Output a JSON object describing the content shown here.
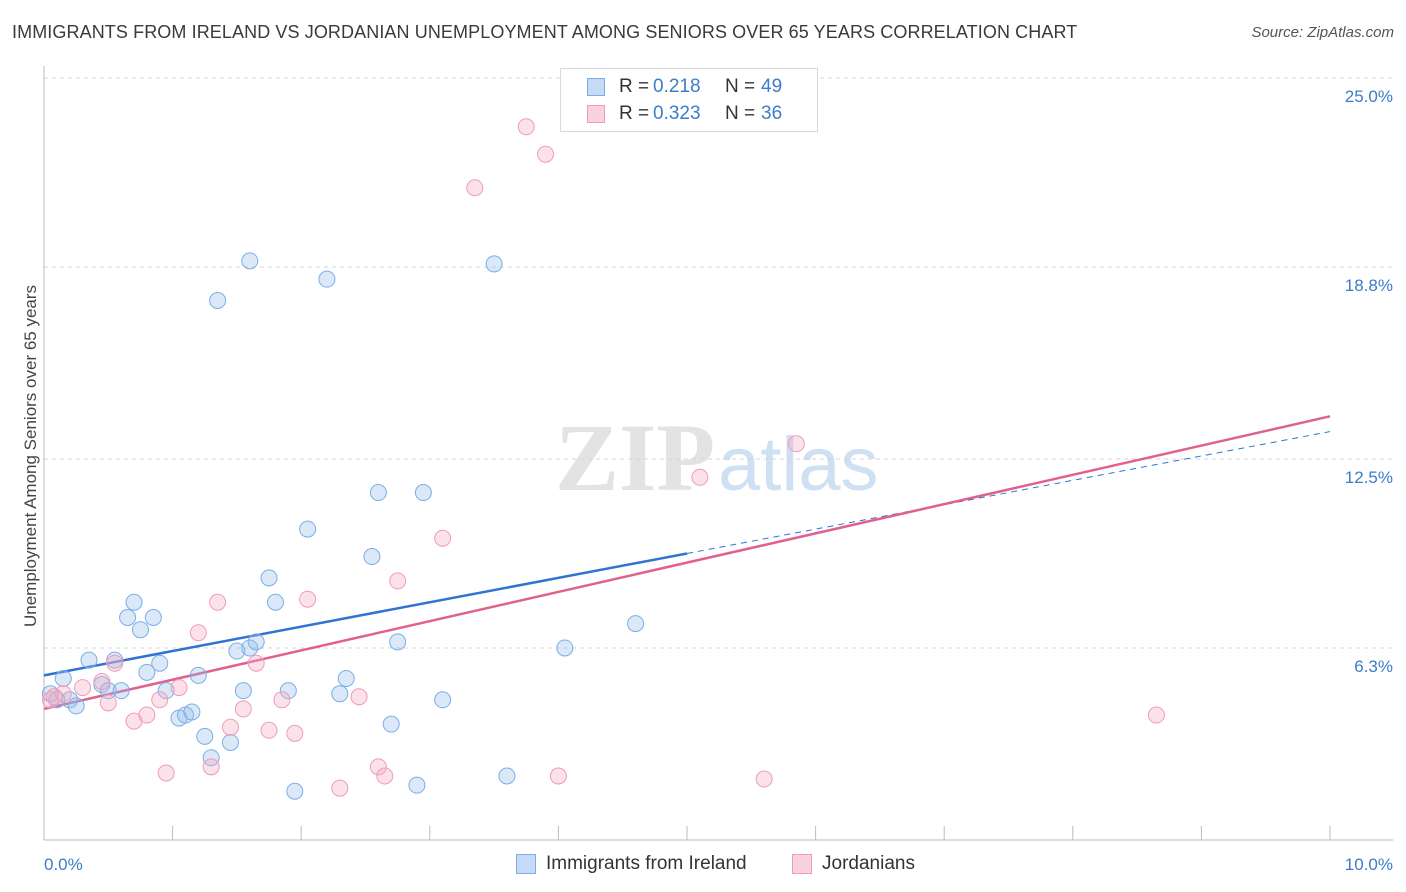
{
  "title": "IMMIGRANTS FROM IRELAND VS JORDANIAN UNEMPLOYMENT AMONG SENIORS OVER 65 YEARS CORRELATION CHART",
  "source": "Source: ZipAtlas.com",
  "watermark": {
    "zip": "ZIP",
    "atlas": "atlas"
  },
  "legend_stats": [
    {
      "r_label": "R = ",
      "r_value": "0.218",
      "n_label": "N = ",
      "n_value": "49",
      "color": "#7aaee8"
    },
    {
      "r_label": "R = ",
      "r_value": "0.323",
      "n_label": "N = ",
      "n_value": "36",
      "color": "#f19bb6"
    }
  ],
  "bottom_legend": [
    "Immigrants from Ireland",
    "Jordanians"
  ],
  "chart_data": {
    "type": "scatter",
    "xlabel": "",
    "ylabel": "Unemployment Among Seniors over 65 years",
    "xlim": [
      0,
      10
    ],
    "ylim": [
      0,
      25
    ],
    "x_tick_labels": [
      "0.0%",
      "10.0%"
    ],
    "y_ticks": [
      6.3,
      12.5,
      18.8,
      25.0
    ],
    "y_tick_labels": [
      "6.3%",
      "12.5%",
      "18.8%",
      "25.0%"
    ],
    "grid": "horizontal dashed",
    "series": [
      {
        "name": "Immigrants from Ireland",
        "color": "#7aaee8",
        "line_color": "#2f74d0",
        "trend": {
          "x0": 0.0,
          "y0": 5.4,
          "x1": 5.0,
          "y1": 9.4,
          "dashed_to_x": 10.0,
          "dashed_to_y": 13.4
        },
        "points": [
          [
            0.05,
            4.8
          ],
          [
            0.1,
            4.6
          ],
          [
            0.15,
            5.3
          ],
          [
            0.2,
            4.6
          ],
          [
            0.25,
            4.4
          ],
          [
            0.35,
            5.9
          ],
          [
            0.45,
            5.1
          ],
          [
            0.5,
            4.9
          ],
          [
            0.55,
            5.9
          ],
          [
            0.6,
            4.9
          ],
          [
            0.65,
            7.3
          ],
          [
            0.7,
            7.8
          ],
          [
            0.75,
            6.9
          ],
          [
            0.8,
            5.5
          ],
          [
            0.85,
            7.3
          ],
          [
            0.9,
            5.8
          ],
          [
            0.95,
            4.9
          ],
          [
            1.05,
            4.0
          ],
          [
            1.1,
            4.1
          ],
          [
            1.15,
            4.2
          ],
          [
            1.2,
            5.4
          ],
          [
            1.25,
            3.4
          ],
          [
            1.3,
            2.7
          ],
          [
            1.45,
            3.2
          ],
          [
            1.5,
            6.2
          ],
          [
            1.55,
            4.9
          ],
          [
            1.6,
            6.3
          ],
          [
            1.65,
            6.5
          ],
          [
            1.75,
            8.6
          ],
          [
            1.8,
            7.8
          ],
          [
            1.35,
            17.7
          ],
          [
            1.6,
            19.0
          ],
          [
            1.9,
            4.9
          ],
          [
            2.05,
            10.2
          ],
          [
            2.2,
            18.4
          ],
          [
            2.3,
            4.8
          ],
          [
            2.35,
            5.3
          ],
          [
            2.55,
            9.3
          ],
          [
            2.6,
            11.4
          ],
          [
            2.7,
            3.8
          ],
          [
            2.75,
            6.5
          ],
          [
            2.95,
            11.4
          ],
          [
            3.1,
            4.6
          ],
          [
            3.5,
            18.9
          ],
          [
            3.6,
            2.1
          ],
          [
            4.05,
            6.3
          ],
          [
            4.6,
            7.1
          ],
          [
            1.95,
            1.6
          ],
          [
            2.9,
            1.8
          ]
        ]
      },
      {
        "name": "Jordanians",
        "color": "#f19bb6",
        "line_color": "#e0608e",
        "trend": {
          "x0": 0.0,
          "y0": 4.3,
          "x1": 10.0,
          "y1": 13.9
        },
        "points": [
          [
            0.05,
            4.6
          ],
          [
            0.15,
            4.8
          ],
          [
            0.3,
            5.0
          ],
          [
            0.45,
            5.2
          ],
          [
            0.5,
            4.5
          ],
          [
            0.55,
            5.8
          ],
          [
            0.7,
            3.9
          ],
          [
            0.8,
            4.1
          ],
          [
            0.9,
            4.6
          ],
          [
            0.95,
            2.2
          ],
          [
            1.05,
            5.0
          ],
          [
            1.2,
            6.8
          ],
          [
            1.3,
            2.4
          ],
          [
            1.35,
            7.8
          ],
          [
            1.45,
            3.7
          ],
          [
            1.55,
            4.3
          ],
          [
            1.65,
            5.8
          ],
          [
            1.75,
            3.6
          ],
          [
            1.85,
            4.6
          ],
          [
            1.95,
            3.5
          ],
          [
            2.05,
            7.9
          ],
          [
            2.3,
            1.7
          ],
          [
            2.45,
            4.7
          ],
          [
            2.6,
            2.4
          ],
          [
            2.65,
            2.1
          ],
          [
            2.75,
            8.5
          ],
          [
            3.1,
            9.9
          ],
          [
            3.35,
            21.4
          ],
          [
            3.75,
            23.4
          ],
          [
            3.9,
            22.5
          ],
          [
            4.0,
            2.1
          ],
          [
            5.1,
            11.9
          ],
          [
            5.6,
            2.0
          ],
          [
            5.85,
            13.0
          ],
          [
            8.65,
            4.1
          ],
          [
            0.08,
            4.7
          ]
        ]
      }
    ]
  }
}
